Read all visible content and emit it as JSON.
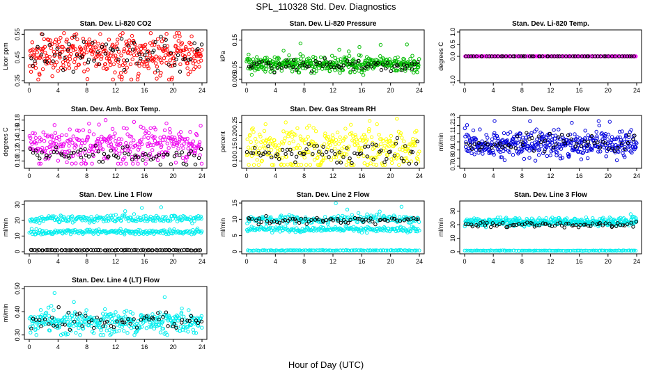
{
  "figure": {
    "title": "SPL_110328  Std. Dev. Diagnostics",
    "xlabel": "Hour of Day (UTC)"
  },
  "chart_data": [
    {
      "type": "scatter",
      "title": "Stan. Dev. Li-820 CO2",
      "ylabel": "Licor ppm",
      "xlim": [
        0,
        24
      ],
      "ylim": [
        0.35,
        0.56
      ],
      "xticks": [
        0,
        4,
        8,
        12,
        16,
        20,
        24
      ],
      "yticks": [
        "0.35",
        "0.45",
        "0.55"
      ],
      "grid": false,
      "series": [
        {
          "color": "#ff0000",
          "n": 360,
          "center": 0.46,
          "spread": 0.045,
          "min": 0.355,
          "max": 0.555
        },
        {
          "color": "#000000",
          "n": 70,
          "center": 0.455,
          "spread": 0.04,
          "min": 0.38,
          "max": 0.55
        }
      ]
    },
    {
      "type": "scatter",
      "title": "Stan. Dev. Li-820 Pressure",
      "ylabel": "kPa",
      "xlim": [
        0,
        24
      ],
      "ylim": [
        0.0,
        0.18
      ],
      "xticks": [
        0,
        4,
        8,
        12,
        16,
        20,
        24
      ],
      "yticks": [
        "0.005",
        "0.05",
        "0.15"
      ],
      "grid": false,
      "series": [
        {
          "color": "#00bb00",
          "n": 420,
          "center": 0.06,
          "spread": 0.015,
          "min": 0.02,
          "max": 0.17
        },
        {
          "color": "#000000",
          "n": 70,
          "center": 0.055,
          "spread": 0.012,
          "min": 0.03,
          "max": 0.09
        }
      ]
    },
    {
      "type": "scatter",
      "title": "Stan. Dev. Li-820 Temp.",
      "ylabel": "degrees C",
      "xlim": [
        0,
        24
      ],
      "ylim": [
        -1.0,
        1.0
      ],
      "xticks": [
        0,
        4,
        8,
        12,
        16,
        20,
        24
      ],
      "yticks": [
        "-1.0",
        "0.0",
        "0.5",
        "1.0"
      ],
      "grid": false,
      "series": [
        {
          "color": "#ff00ff",
          "n": 160,
          "center": 0.0,
          "spread": 0.0,
          "min": 0.0,
          "max": 0.0
        },
        {
          "color": "#000000",
          "n": 60,
          "center": 0.0,
          "spread": 0.0,
          "min": 0.0,
          "max": 0.0
        }
      ]
    },
    {
      "type": "scatter",
      "title": "Stan. Dev. Amb. Box Temp.",
      "ylabel": "degrees C",
      "xlim": [
        0,
        24
      ],
      "ylim": [
        0.09,
        0.185
      ],
      "xticks": [
        0,
        4,
        8,
        12,
        16,
        20,
        24
      ],
      "yticks": [
        "0.10",
        "0.12",
        "0.14",
        "0.16",
        "0.18"
      ],
      "grid": false,
      "series": [
        {
          "color": "#ee00ee",
          "n": 330,
          "center": 0.13,
          "spread": 0.018,
          "min": 0.095,
          "max": 0.18
        },
        {
          "color": "#000000",
          "n": 70,
          "center": 0.11,
          "spread": 0.008,
          "min": 0.093,
          "max": 0.13
        }
      ]
    },
    {
      "type": "scatter",
      "title": "Stan. Dev. Gas Stream RH",
      "ylabel": "percent",
      "xlim": [
        0,
        24
      ],
      "ylim": [
        0.08,
        0.27
      ],
      "xticks": [
        0,
        4,
        8,
        12,
        16,
        20,
        24
      ],
      "yticks": [
        "0.10",
        "0.15",
        "0.20",
        "0.25"
      ],
      "grid": false,
      "series": [
        {
          "color": "#ffff00",
          "n": 330,
          "center": 0.15,
          "spread": 0.045,
          "min": 0.085,
          "max": 0.265
        },
        {
          "color": "#000000",
          "n": 70,
          "center": 0.13,
          "spread": 0.025,
          "min": 0.09,
          "max": 0.19
        }
      ]
    },
    {
      "type": "scatter",
      "title": "Stan. Dev. Sample Flow",
      "ylabel": "ml/min",
      "xlim": [
        0,
        24
      ],
      "ylim": [
        0.7,
        1.3
      ],
      "xticks": [
        0,
        4,
        8,
        12,
        16,
        20,
        24
      ],
      "yticks": [
        "0.7",
        "0.8",
        "0.9",
        "1.0",
        "1.1",
        "1.2",
        "1.3"
      ],
      "grid": false,
      "series": [
        {
          "color": "#0000dd",
          "n": 420,
          "center": 0.97,
          "spread": 0.08,
          "min": 0.72,
          "max": 1.29
        },
        {
          "color": "#000000",
          "n": 60,
          "center": 0.98,
          "spread": 0.06,
          "min": 0.85,
          "max": 1.2
        }
      ]
    },
    {
      "type": "scatter",
      "title": "Stan. Dev. Line 1 Flow",
      "ylabel": "ml/min",
      "xlim": [
        0,
        24
      ],
      "ylim": [
        0,
        31
      ],
      "xticks": [
        0,
        4,
        8,
        12,
        16,
        20,
        24
      ],
      "yticks": [
        "0",
        "10",
        "20",
        "30"
      ],
      "grid": false,
      "series": [
        {
          "color": "#00eeee",
          "n": 200,
          "center": 21,
          "spread": 1.2,
          "min": 18,
          "max": 30
        },
        {
          "color": "#00eeee",
          "n": 200,
          "center": 12.5,
          "spread": 0.8,
          "min": 10.5,
          "max": 15
        },
        {
          "color": "#000000",
          "n": 80,
          "center": 1.0,
          "spread": 0.1,
          "min": 0.7,
          "max": 1.3
        }
      ]
    },
    {
      "type": "scatter",
      "title": "Stan. Dev. Line 2 Flow",
      "ylabel": "ml/min",
      "xlim": [
        0,
        24
      ],
      "ylim": [
        0,
        15
      ],
      "xticks": [
        0,
        4,
        8,
        12,
        16,
        20,
        24
      ],
      "yticks": [
        "0",
        "5",
        "10",
        "15"
      ],
      "grid": false,
      "series": [
        {
          "color": "#00eeee",
          "n": 200,
          "center": 10,
          "spread": 0.6,
          "min": 8.5,
          "max": 15
        },
        {
          "color": "#00eeee",
          "n": 200,
          "center": 6.8,
          "spread": 0.4,
          "min": 5.8,
          "max": 8
        },
        {
          "color": "#00eeee",
          "n": 120,
          "center": 0.4,
          "spread": 0.05,
          "min": 0.2,
          "max": 0.6
        },
        {
          "color": "#000000",
          "n": 70,
          "center": 9.8,
          "spread": 0.6,
          "min": 8.3,
          "max": 11
        }
      ]
    },
    {
      "type": "scatter",
      "title": "Stan. Dev. Line 3 Flow",
      "ylabel": "ml/min",
      "xlim": [
        0,
        24
      ],
      "ylim": [
        0,
        36
      ],
      "xticks": [
        0,
        4,
        8,
        12,
        16,
        20,
        24
      ],
      "yticks": [
        "0",
        "10",
        "20",
        "30"
      ],
      "grid": false,
      "series": [
        {
          "color": "#00eeee",
          "n": 380,
          "center": 22,
          "spread": 1.5,
          "min": 17,
          "max": 35
        },
        {
          "color": "#00eeee",
          "n": 120,
          "center": 0.8,
          "spread": 0.1,
          "min": 0.5,
          "max": 1.1
        },
        {
          "color": "#000000",
          "n": 70,
          "center": 20,
          "spread": 1.0,
          "min": 17,
          "max": 23
        }
      ]
    },
    {
      "type": "scatter",
      "title": "Stan. Dev. Line 4 (LT) Flow",
      "ylabel": "ml/min",
      "xlim": [
        0,
        24
      ],
      "ylim": [
        0.29,
        0.5
      ],
      "xticks": [
        0,
        4,
        8,
        12,
        16,
        20,
        24
      ],
      "yticks": [
        "0.30",
        "0.40",
        "0.50"
      ],
      "grid": false,
      "series": [
        {
          "color": "#00eeee",
          "n": 360,
          "center": 0.355,
          "spread": 0.025,
          "min": 0.3,
          "max": 0.49
        },
        {
          "color": "#000000",
          "n": 60,
          "center": 0.36,
          "spread": 0.025,
          "min": 0.31,
          "max": 0.42
        }
      ]
    }
  ]
}
